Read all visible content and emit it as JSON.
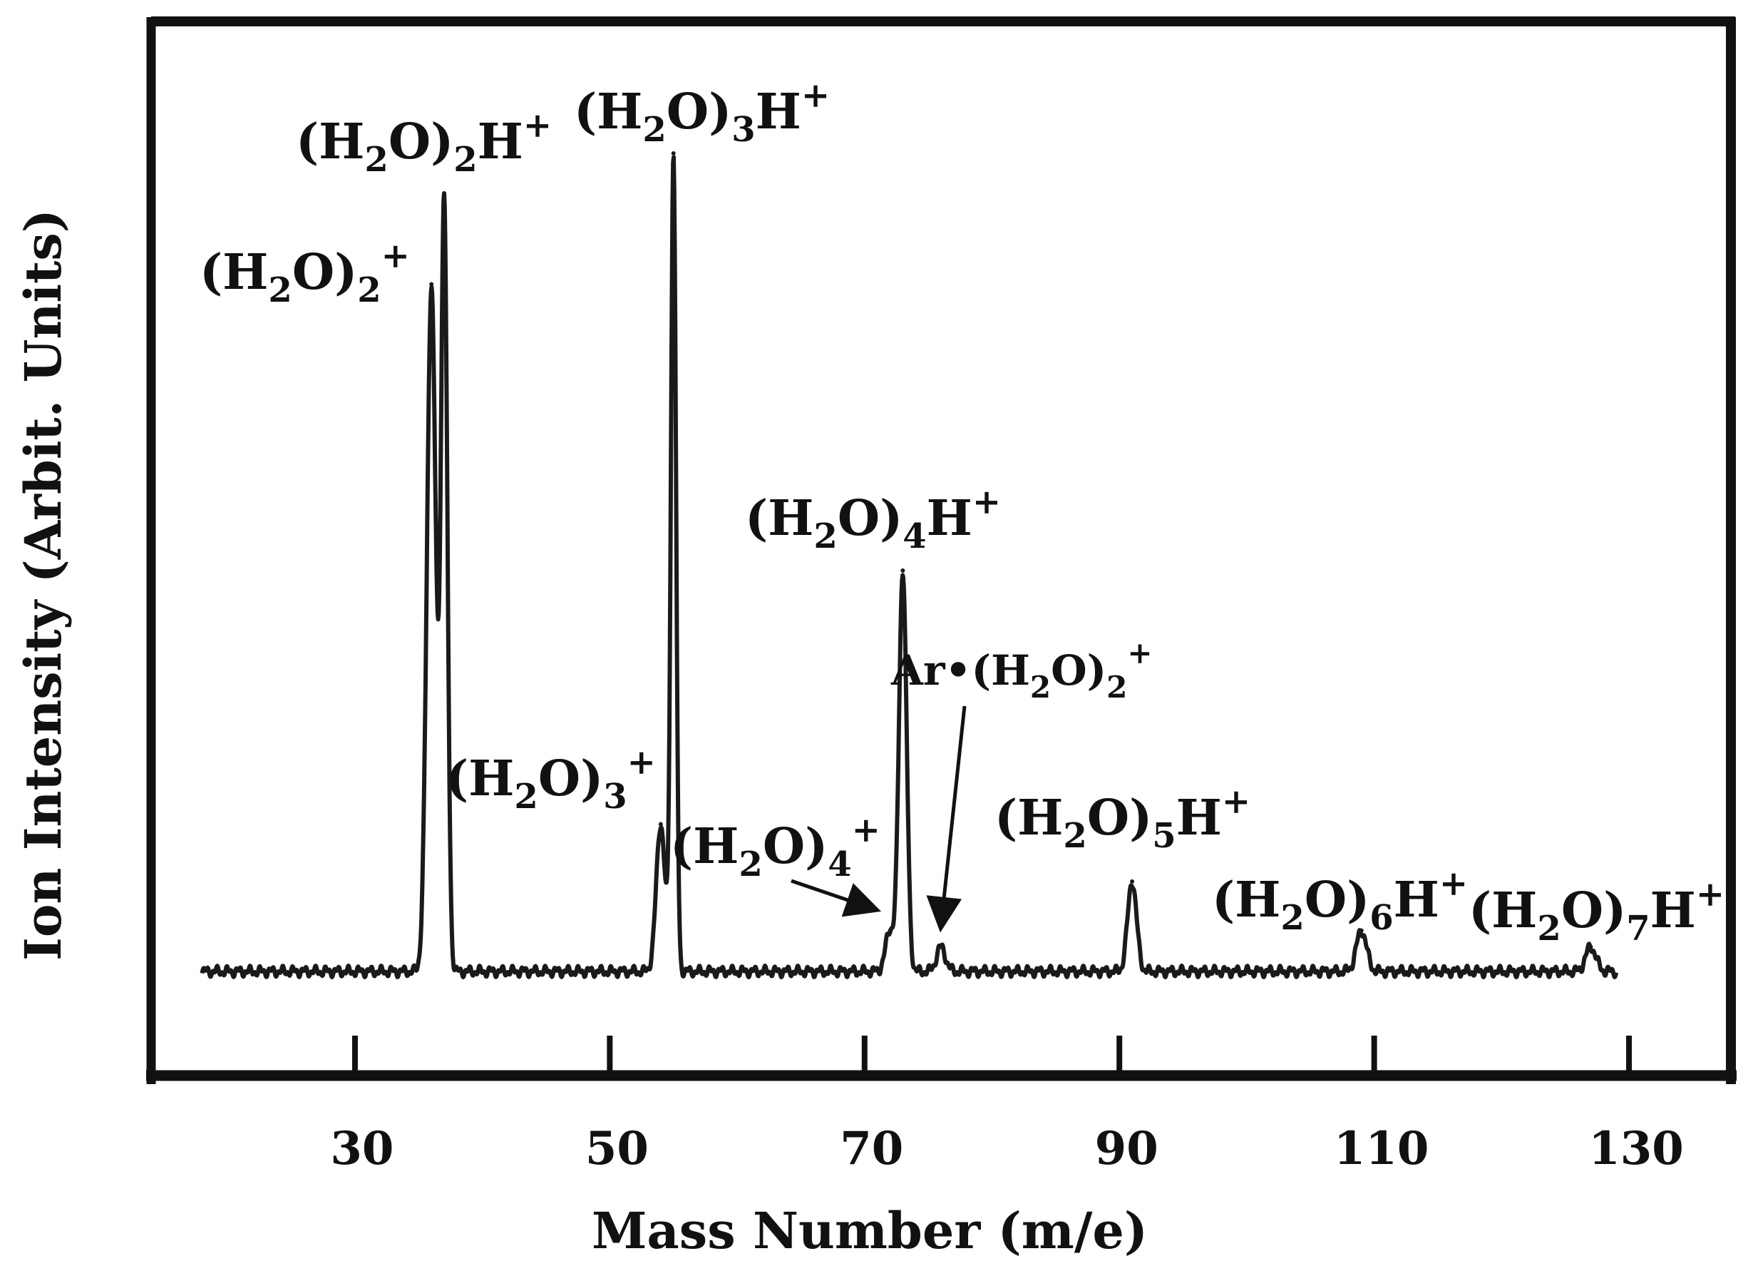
{
  "chart_data": {
    "type": "line",
    "title": "",
    "xlabel": "Mass Number (m/e)",
    "ylabel": "Ion Intensity (Arbit. Units)",
    "xlim": [
      14,
      138
    ],
    "ylim": [
      -0.08,
      1.15
    ],
    "x_ticks": [
      30,
      50,
      70,
      90,
      110,
      130
    ],
    "grid": false,
    "legend": "none",
    "baseline": 0,
    "peaks": [
      {
        "mz": 36,
        "intensity": 0.84,
        "width": 0.35,
        "label": {
          "prefix": "(H",
          "sub1": "2",
          "mid": "O)",
          "sub2": "2",
          "tail": "",
          "sup": "+"
        },
        "arrow": false
      },
      {
        "mz": 37,
        "intensity": 0.94,
        "width": 0.25,
        "label": {
          "prefix": "(H",
          "sub1": "2",
          "mid": "O)",
          "sub2": "2",
          "tail": "H",
          "sup": "+"
        },
        "arrow": false
      },
      {
        "mz": 54,
        "intensity": 0.18,
        "width": 0.35,
        "label": {
          "prefix": "(H",
          "sub1": "2",
          "mid": "O)",
          "sub2": "3",
          "tail": "",
          "sup": "+"
        },
        "arrow": false
      },
      {
        "mz": 55,
        "intensity": 1.0,
        "width": 0.2,
        "label": {
          "prefix": "(H",
          "sub1": "2",
          "mid": "O)",
          "sub2": "3",
          "tail": "H",
          "sup": "+"
        },
        "arrow": false
      },
      {
        "mz": 72,
        "intensity": 0.05,
        "width": 0.35,
        "label": {
          "prefix": "(H",
          "sub1": "2",
          "mid": "O)",
          "sub2": "4",
          "tail": "",
          "sup": "+"
        },
        "arrow": true
      },
      {
        "mz": 73,
        "intensity": 0.49,
        "width": 0.3,
        "label": {
          "prefix": "(H",
          "sub1": "2",
          "mid": "O)",
          "sub2": "4",
          "tail": "H",
          "sup": "+"
        },
        "arrow": false
      },
      {
        "mz": 76,
        "intensity": 0.03,
        "width": 0.35,
        "label": {
          "prefix": "Ar•(H",
          "sub1": "2",
          "mid": "O)",
          "sub2": "2",
          "tail": "",
          "sup": "+"
        },
        "arrow": true
      },
      {
        "mz": 91,
        "intensity": 0.11,
        "width": 0.35,
        "label": {
          "prefix": "(H",
          "sub1": "2",
          "mid": "O)",
          "sub2": "5",
          "tail": "H",
          "sup": "+"
        },
        "arrow": false
      },
      {
        "mz": 109,
        "intensity": 0.05,
        "width": 0.4,
        "label": {
          "prefix": "(H",
          "sub1": "2",
          "mid": "O)",
          "sub2": "6",
          "tail": "H",
          "sup": "+"
        },
        "arrow": false
      },
      {
        "mz": 127,
        "intensity": 0.03,
        "width": 0.4,
        "label": {
          "prefix": "(H",
          "sub1": "2",
          "mid": "O)",
          "sub2": "7",
          "tail": "H",
          "sup": "+"
        },
        "arrow": false
      }
    ],
    "spectrum_range": [
      18,
      129
    ],
    "colors": {
      "trace": "#1a1a1a",
      "frame": "#111111",
      "background": "#ffffff"
    }
  }
}
